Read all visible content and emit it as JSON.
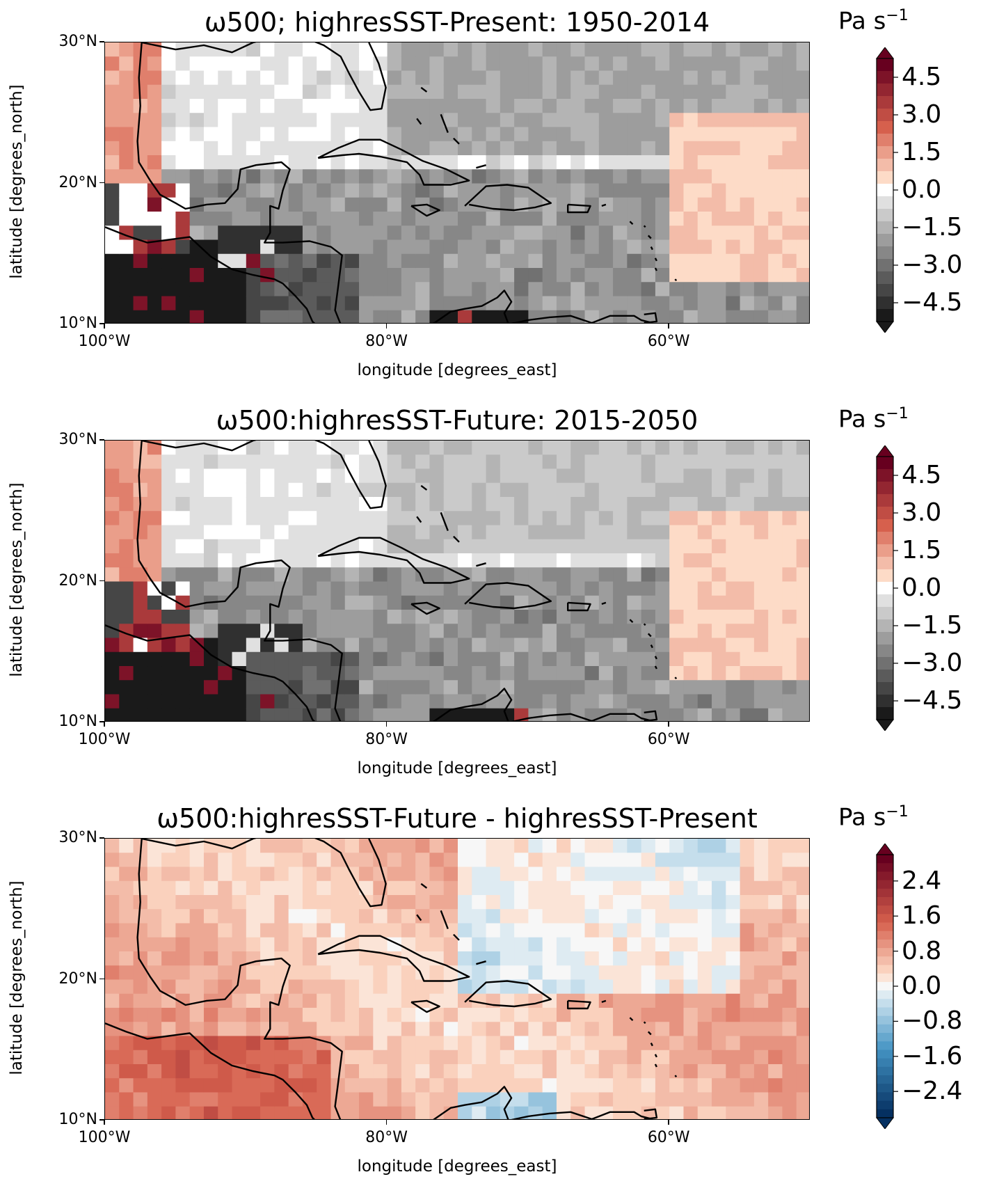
{
  "panels": [
    {
      "title": "ω500; highresSST-Present: 1950-2014",
      "colorbar": {
        "unit": "Pa s",
        "unit_exp": "−1",
        "ticks": [
          "4.5",
          "3.0",
          "1.5",
          "0.0",
          "−1.5",
          "−3.0",
          "−4.5"
        ],
        "min": -5.25,
        "max": 5.25,
        "levels": 21,
        "cmap": "RdGy_r"
      }
    },
    {
      "title": "ω500:highresSST-Future: 2015-2050",
      "colorbar": {
        "unit": "Pa s",
        "unit_exp": "−1",
        "ticks": [
          "4.5",
          "3.0",
          "1.5",
          "0.0",
          "−1.5",
          "−3.0",
          "−4.5"
        ],
        "min": -5.25,
        "max": 5.25,
        "levels": 21,
        "cmap": "RdGy_r"
      }
    },
    {
      "title": "ω500:highresSST-Future - highresSST-Present",
      "colorbar": {
        "unit": "Pa s",
        "unit_exp": "−1",
        "ticks": [
          "2.4",
          "1.6",
          "0.8",
          "0.0",
          "−0.8",
          "−1.6",
          "−2.4"
        ],
        "min": -3.0,
        "max": 3.0,
        "levels": 31,
        "cmap": "RdBu_r"
      }
    }
  ],
  "axes": {
    "xlabel": "longitude [degrees_east]",
    "ylabel": "latitude [degrees_north]",
    "xticks": [
      "100°W",
      "80°W",
      "60°W"
    ],
    "yticks": [
      "30°N",
      "20°N",
      "10°N"
    ],
    "xlim": [
      -100,
      -50
    ],
    "ylim": [
      10,
      30
    ]
  },
  "colors": {
    "coast": "#000000"
  }
}
